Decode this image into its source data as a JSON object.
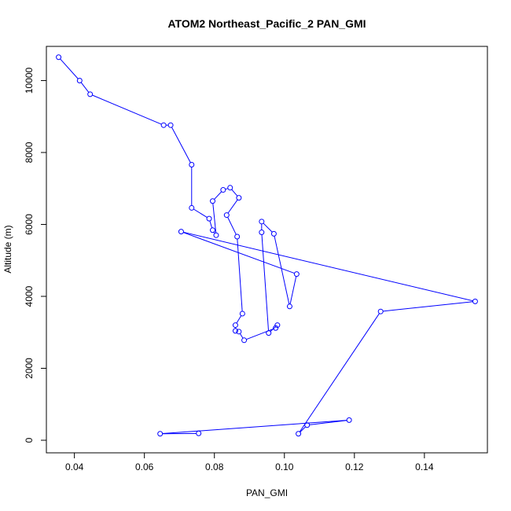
{
  "chart_data": {
    "type": "line",
    "title": "ATOM2 Northeast_Pacific_2 PAN_GMI",
    "xlabel": "PAN_GMI",
    "ylabel": "Altitude (m)",
    "xlim": [
      0.032,
      0.158
    ],
    "ylim": [
      -350,
      10950
    ],
    "x_ticks": [
      0.04,
      0.06,
      0.08,
      0.1,
      0.12,
      0.14
    ],
    "x_tick_labels": [
      "0.04",
      "0.06",
      "0.08",
      "0.10",
      "0.12",
      "0.14"
    ],
    "y_ticks": [
      0,
      2000,
      4000,
      6000,
      8000,
      10000
    ],
    "y_tick_labels": [
      "0",
      "2000",
      "4000",
      "6000",
      "8000",
      "10000"
    ],
    "grid": false,
    "legend": "none",
    "series": [
      {
        "color": "#0000ff",
        "marker": "circle-open",
        "points": [
          [
            0.0355,
            10650
          ],
          [
            0.0415,
            10000
          ],
          [
            0.0445,
            9620
          ],
          [
            0.0655,
            8760
          ],
          [
            0.0675,
            8760
          ],
          [
            0.0735,
            7660
          ],
          [
            0.0735,
            6460
          ],
          [
            0.0785,
            6160
          ],
          [
            0.0795,
            5840
          ],
          [
            0.0805,
            5700
          ],
          [
            0.0795,
            6650
          ],
          [
            0.0825,
            6960
          ],
          [
            0.0845,
            7020
          ],
          [
            0.087,
            6740
          ],
          [
            0.0835,
            6260
          ],
          [
            0.0865,
            5660
          ],
          [
            0.088,
            3520
          ],
          [
            0.086,
            3200
          ],
          [
            0.086,
            3040
          ],
          [
            0.087,
            3020
          ],
          [
            0.0885,
            2780
          ],
          [
            0.0975,
            3120
          ],
          [
            0.098,
            3200
          ],
          [
            0.0955,
            2980
          ],
          [
            0.0935,
            5780
          ],
          [
            0.0935,
            6080
          ],
          [
            0.097,
            5740
          ],
          [
            0.1015,
            3720
          ],
          [
            0.1035,
            4620
          ],
          [
            0.0705,
            5800
          ],
          [
            0.1545,
            3860
          ],
          [
            0.1275,
            3580
          ],
          [
            0.104,
            180
          ],
          [
            0.1065,
            420
          ],
          [
            0.1185,
            560
          ],
          [
            0.0645,
            180
          ],
          [
            0.0755,
            190
          ]
        ]
      }
    ]
  }
}
